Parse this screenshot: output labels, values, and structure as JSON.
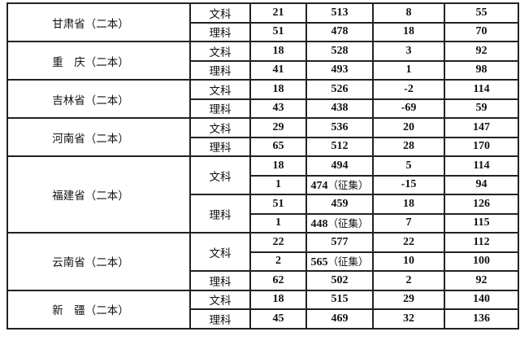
{
  "rows": [
    {
      "province": "甘肃省（二本）",
      "groups": [
        {
          "subject": "文科",
          "lines": [
            {
              "c1": "21",
              "c2": "513",
              "c2_note": "",
              "c3": "8",
              "c4": "55"
            }
          ]
        },
        {
          "subject": "理科",
          "lines": [
            {
              "c1": "51",
              "c2": "478",
              "c2_note": "",
              "c3": "18",
              "c4": "70"
            }
          ]
        }
      ]
    },
    {
      "province": "重　庆（二本）",
      "groups": [
        {
          "subject": "文科",
          "lines": [
            {
              "c1": "18",
              "c2": "528",
              "c2_note": "",
              "c3": "3",
              "c4": "92"
            }
          ]
        },
        {
          "subject": "理科",
          "lines": [
            {
              "c1": "41",
              "c2": "493",
              "c2_note": "",
              "c3": "1",
              "c4": "98"
            }
          ]
        }
      ]
    },
    {
      "province": "吉林省（二本）",
      "groups": [
        {
          "subject": "文科",
          "lines": [
            {
              "c1": "18",
              "c2": "526",
              "c2_note": "",
              "c3": "-2",
              "c4": "114"
            }
          ]
        },
        {
          "subject": "理科",
          "lines": [
            {
              "c1": "43",
              "c2": "438",
              "c2_note": "",
              "c3": "-69",
              "c4": "59"
            }
          ]
        }
      ]
    },
    {
      "province": "河南省（二本）",
      "groups": [
        {
          "subject": "文科",
          "lines": [
            {
              "c1": "29",
              "c2": "536",
              "c2_note": "",
              "c3": "20",
              "c4": "147"
            }
          ]
        },
        {
          "subject": "理科",
          "lines": [
            {
              "c1": "65",
              "c2": "512",
              "c2_note": "",
              "c3": "28",
              "c4": "170"
            }
          ]
        }
      ]
    },
    {
      "province": "福建省（二本）",
      "groups": [
        {
          "subject": "文科",
          "lines": [
            {
              "c1": "18",
              "c2": "494",
              "c2_note": "",
              "c3": "5",
              "c4": "114"
            },
            {
              "c1": "1",
              "c2": "474",
              "c2_note": "（征集）",
              "c3": "-15",
              "c4": "94"
            }
          ]
        },
        {
          "subject": "理科",
          "lines": [
            {
              "c1": "51",
              "c2": "459",
              "c2_note": "",
              "c3": "18",
              "c4": "126"
            },
            {
              "c1": "1",
              "c2": "448",
              "c2_note": "（征集）",
              "c3": "7",
              "c4": "115"
            }
          ]
        }
      ]
    },
    {
      "province": "云南省（二本）",
      "groups": [
        {
          "subject": "文科",
          "lines": [
            {
              "c1": "22",
              "c2": "577",
              "c2_note": "",
              "c3": "22",
              "c4": "112"
            },
            {
              "c1": "2",
              "c2": "565",
              "c2_note": "（征集）",
              "c3": "10",
              "c4": "100"
            }
          ]
        },
        {
          "subject": "理科",
          "lines": [
            {
              "c1": "62",
              "c2": "502",
              "c2_note": "",
              "c3": "2",
              "c4": "92"
            }
          ]
        }
      ]
    },
    {
      "province": "新　疆（二本）",
      "groups": [
        {
          "subject": "文科",
          "lines": [
            {
              "c1": "18",
              "c2": "515",
              "c2_note": "",
              "c3": "29",
              "c4": "140"
            }
          ]
        },
        {
          "subject": "理科",
          "lines": [
            {
              "c1": "45",
              "c2": "469",
              "c2_note": "",
              "c3": "32",
              "c4": "136"
            }
          ]
        }
      ]
    }
  ]
}
